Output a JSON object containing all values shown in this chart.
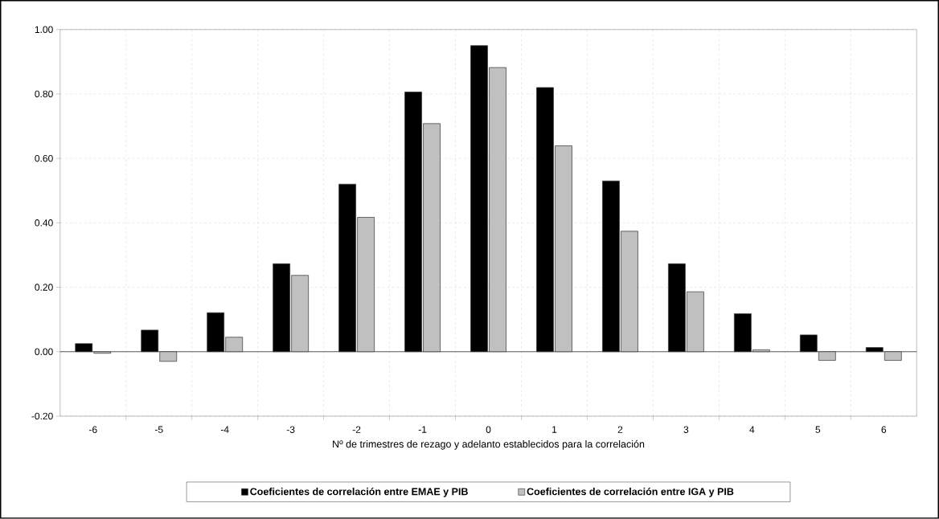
{
  "chart_data": {
    "type": "bar",
    "xlabel": "Nº de trimestres de rezago y adelanto establecidos para la correlación",
    "categories": [
      "-6",
      "-5",
      "-4",
      "-3",
      "-2",
      "-1",
      "0",
      "1",
      "2",
      "3",
      "4",
      "5",
      "6"
    ],
    "series": [
      {
        "name": "Coeficientes de correlación entre EMAE y PIB",
        "color": "#000000",
        "values": [
          0.025,
          0.067,
          0.121,
          0.273,
          0.52,
          0.806,
          0.95,
          0.82,
          0.53,
          0.273,
          0.118,
          0.052,
          0.013
        ]
      },
      {
        "name": "Coeficientes de correlación entre IGA y PIB",
        "color": "#c0c0c0",
        "values": [
          -0.005,
          -0.03,
          0.045,
          0.237,
          0.417,
          0.708,
          0.882,
          0.639,
          0.374,
          0.186,
          0.006,
          -0.027,
          -0.027
        ]
      }
    ],
    "ylim": [
      -0.2,
      1.0
    ],
    "yticks": [
      {
        "value": -0.2,
        "label": "-0.20"
      },
      {
        "value": 0,
        "label": "0.00"
      },
      {
        "value": 0.2,
        "label": "0.20"
      },
      {
        "value": 0.4,
        "label": "0.40"
      },
      {
        "value": 0.6,
        "label": "0.60"
      },
      {
        "value": 0.8,
        "label": "0.80"
      },
      {
        "value": 1.0,
        "label": "1.00"
      }
    ],
    "grid": true,
    "legend": "bottom"
  }
}
